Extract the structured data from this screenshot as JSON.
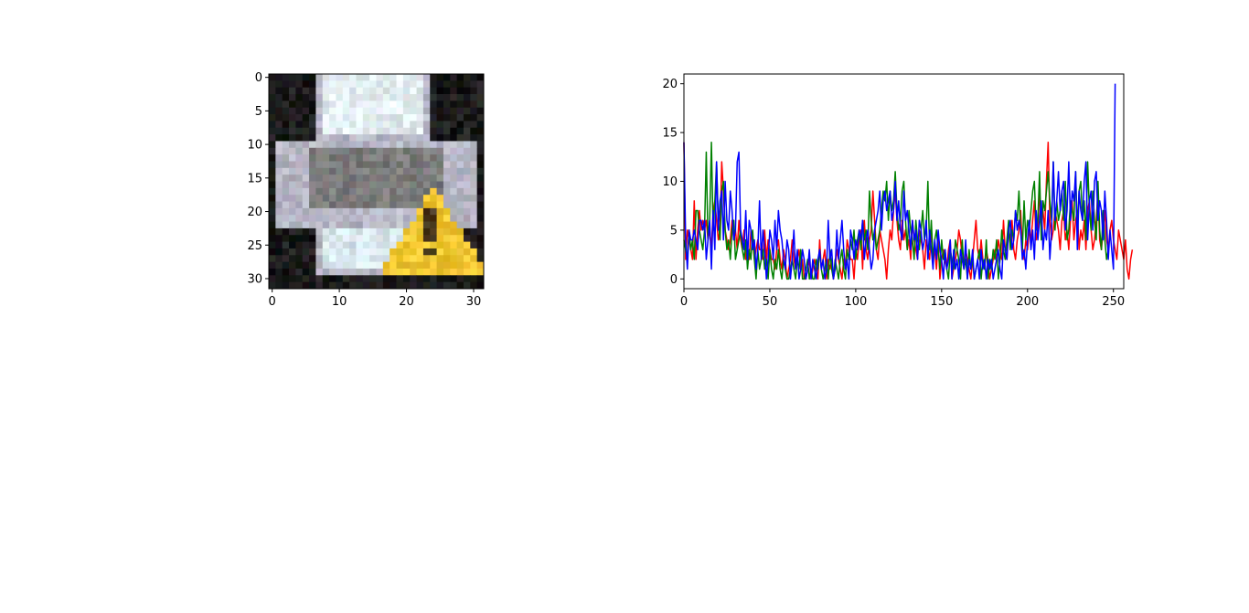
{
  "chart_data": [
    {
      "type": "image",
      "subject": "pixelated printer icon with yellow warning triangle",
      "xlim": [
        -0.5,
        31.5
      ],
      "ylim": [
        31.5,
        -0.5
      ],
      "xticks": [
        0,
        10,
        20,
        30
      ],
      "yticks": [
        0,
        5,
        10,
        15,
        20,
        25,
        30
      ],
      "xtick_labels": [
        "0",
        "10",
        "20",
        "30"
      ],
      "ytick_labels": [
        "0",
        "5",
        "10",
        "15",
        "20",
        "25",
        "30"
      ],
      "colors": {
        "background": "#1c1c1c",
        "paper": "#e4eef2",
        "body": "#b6b6c4",
        "slot": "#7c7c7c",
        "output": "#dae8ee",
        "warning": "#f2c832",
        "warning_mark": "#4a3a20"
      }
    },
    {
      "type": "line",
      "title": "",
      "xlabel": "",
      "ylabel": "",
      "xlim": [
        0,
        256
      ],
      "ylim": [
        -1,
        21
      ],
      "xticks": [
        0,
        50,
        100,
        150,
        200,
        250
      ],
      "yticks": [
        0,
        5,
        10,
        15,
        20
      ],
      "xtick_labels": [
        "0",
        "50",
        "100",
        "150",
        "200",
        "250"
      ],
      "ytick_labels": [
        "0",
        "5",
        "10",
        "15",
        "20"
      ],
      "grid": false,
      "series": [
        {
          "color": "#ff0000",
          "x_start": 0,
          "values": [
            14,
            2,
            5,
            4,
            3,
            2,
            8,
            2,
            5,
            7,
            5,
            6,
            5,
            6,
            4,
            5,
            3,
            7,
            8,
            6,
            4,
            5,
            12,
            9,
            5,
            4,
            3,
            4,
            6,
            4,
            5,
            3,
            6,
            4,
            3,
            5,
            2,
            3,
            2,
            5,
            4,
            2,
            3,
            4,
            3,
            3,
            2,
            5,
            2,
            4,
            3,
            2,
            2,
            1,
            3,
            4,
            2,
            1,
            3,
            2,
            0,
            1,
            2,
            4,
            2,
            1,
            2,
            3,
            1,
            2,
            0,
            0,
            1,
            2,
            0,
            1,
            2,
            1,
            0,
            4,
            1,
            2,
            3,
            0,
            2,
            1,
            2,
            0,
            1,
            3,
            2,
            1,
            0,
            2,
            1,
            4,
            3,
            2,
            2,
            0,
            3,
            2,
            4,
            5,
            1,
            6,
            3,
            2,
            4,
            5,
            9,
            6,
            3,
            2,
            5,
            4,
            3,
            2,
            0,
            3,
            5,
            4,
            7,
            9,
            6,
            4,
            3,
            6,
            4,
            5,
            3,
            4,
            2,
            6,
            4,
            3,
            2,
            5,
            4,
            3,
            1,
            4,
            3,
            2,
            5,
            2,
            3,
            1,
            4,
            0,
            2,
            3,
            2,
            1,
            3,
            4,
            0,
            1,
            2,
            3,
            5,
            4,
            2,
            1,
            3,
            2,
            1,
            0,
            2,
            4,
            6,
            3,
            2,
            4,
            2,
            1,
            3,
            2,
            0,
            1,
            2,
            3,
            2,
            4,
            3,
            2,
            6,
            3,
            2,
            5,
            4,
            6,
            3,
            2,
            4,
            5,
            7,
            3,
            2,
            4,
            3,
            5,
            4,
            6,
            8,
            4,
            5,
            9,
            6,
            7,
            5,
            10,
            14,
            6,
            4,
            5,
            7,
            6,
            5,
            3,
            6,
            7,
            4,
            5,
            3,
            6,
            8,
            4,
            6,
            7,
            3,
            5,
            4,
            6,
            3,
            7,
            8,
            5,
            3,
            4,
            6,
            9,
            4,
            3,
            5,
            7,
            4,
            3,
            5,
            6,
            4,
            3,
            2,
            5,
            4,
            3,
            2,
            4,
            1,
            0,
            2,
            3
          ]
        },
        {
          "color": "#008000",
          "x_start": 0,
          "values": [
            4,
            3,
            2,
            5,
            3,
            4,
            2,
            7,
            7,
            5,
            4,
            3,
            5,
            13,
            4,
            6,
            14,
            5,
            8,
            12,
            6,
            4,
            9,
            10,
            5,
            3,
            4,
            2,
            5,
            6,
            2,
            3,
            4,
            5,
            3,
            2,
            4,
            1,
            3,
            2,
            5,
            2,
            0,
            3,
            1,
            2,
            3,
            1,
            2,
            0,
            3,
            1,
            0,
            2,
            1,
            3,
            1,
            0,
            2,
            1,
            0,
            0,
            1,
            2,
            1,
            0,
            2,
            1,
            3,
            0,
            0,
            1,
            2,
            0,
            1,
            0,
            0,
            2,
            1,
            3,
            1,
            0,
            1,
            2,
            0,
            3,
            1,
            0,
            2,
            1,
            0,
            2,
            3,
            1,
            0,
            3,
            2,
            4,
            3,
            5,
            2,
            4,
            5,
            3,
            6,
            4,
            5,
            3,
            9,
            6,
            4,
            5,
            3,
            4,
            5,
            7,
            9,
            8,
            10,
            6,
            9,
            7,
            8,
            11,
            7,
            5,
            6,
            9,
            10,
            6,
            3,
            7,
            5,
            4,
            2,
            6,
            4,
            3,
            5,
            7,
            4,
            5,
            10,
            3,
            6,
            2,
            4,
            5,
            3,
            1,
            4,
            2,
            3,
            1,
            0,
            3,
            2,
            1,
            4,
            3,
            2,
            0,
            4,
            1,
            2,
            0,
            3,
            1,
            2,
            0,
            1,
            2,
            3,
            0,
            2,
            1,
            4,
            0,
            2,
            1,
            3,
            2,
            4,
            0,
            2,
            5,
            3,
            2,
            4,
            6,
            3,
            5,
            4,
            7,
            6,
            9,
            5,
            3,
            8,
            4,
            6,
            5,
            7,
            9,
            10,
            5,
            6,
            11,
            4,
            8,
            7,
            9,
            11,
            8,
            6,
            12,
            5,
            8,
            6,
            7,
            9,
            6,
            10,
            4,
            5,
            8,
            7,
            6,
            11,
            5,
            9,
            10,
            6,
            8,
            4,
            12,
            7,
            5,
            9,
            6,
            4,
            10,
            5,
            3,
            7,
            4,
            2,
            3
          ]
        },
        {
          "color": "#0000ff",
          "x_start": 0,
          "values": [
            14,
            4,
            1,
            5,
            4,
            4,
            5,
            4,
            3,
            6,
            6,
            5,
            6,
            2,
            4,
            6,
            1,
            7,
            3,
            12,
            5,
            8,
            9,
            4,
            10,
            6,
            5,
            9,
            7,
            4,
            5,
            12,
            13,
            5,
            4,
            3,
            7,
            2,
            6,
            5,
            3,
            4,
            1,
            3,
            8,
            2,
            5,
            3,
            0,
            2,
            5,
            4,
            2,
            6,
            3,
            7,
            5,
            4,
            2,
            1,
            4,
            3,
            0,
            2,
            5,
            1,
            3,
            0,
            1,
            3,
            2,
            0,
            1,
            3,
            0,
            2,
            1,
            0,
            2,
            3,
            1,
            2,
            0,
            1,
            6,
            2,
            3,
            0,
            1,
            5,
            2,
            4,
            6,
            3,
            1,
            2,
            0,
            5,
            4,
            2,
            4,
            3,
            5,
            4,
            6,
            2,
            4,
            5,
            3,
            1,
            2,
            5,
            6,
            7,
            9,
            5,
            8,
            9,
            7,
            8,
            9,
            6,
            7,
            10,
            6,
            8,
            5,
            4,
            9,
            6,
            7,
            5,
            3,
            6,
            4,
            5,
            2,
            6,
            5,
            3,
            4,
            6,
            2,
            5,
            3,
            1,
            4,
            2,
            5,
            3,
            2,
            0,
            3,
            1,
            2,
            4,
            0,
            3,
            1,
            2,
            0,
            3,
            2,
            1,
            4,
            0,
            2,
            1,
            3,
            0,
            1,
            2,
            0,
            3,
            1,
            2,
            0,
            2,
            1,
            2,
            0,
            1,
            2,
            3,
            1,
            0,
            4,
            3,
            2,
            5,
            6,
            3,
            4,
            7,
            5,
            6,
            5,
            2,
            3,
            1,
            4,
            6,
            3,
            5,
            2,
            7,
            4,
            6,
            8,
            3,
            5,
            4,
            7,
            2,
            5,
            12,
            6,
            8,
            11,
            7,
            9,
            10,
            5,
            7,
            12,
            6,
            9,
            8,
            11,
            3,
            9,
            7,
            6,
            10,
            12,
            4,
            8,
            9,
            5,
            10,
            11,
            6,
            8,
            7,
            4,
            9,
            6,
            2,
            5,
            3,
            1,
            20
          ]
        }
      ]
    }
  ]
}
